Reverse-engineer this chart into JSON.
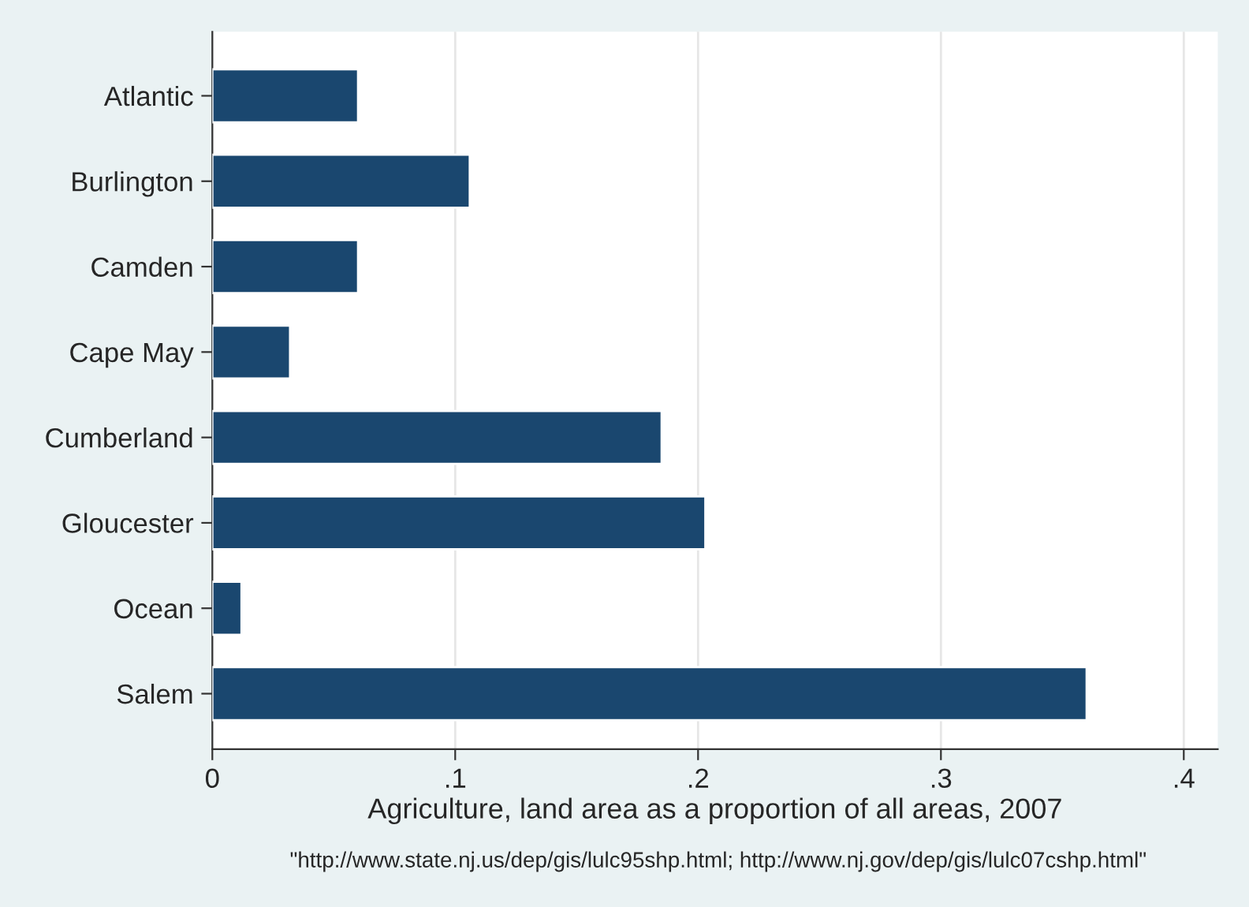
{
  "chart_data": {
    "type": "bar",
    "orientation": "horizontal",
    "categories": [
      "Atlantic",
      "Burlington",
      "Camden",
      "Cape May",
      "Cumberland",
      "Gloucester",
      "Ocean",
      "Salem"
    ],
    "values": [
      0.06,
      0.106,
      0.06,
      0.032,
      0.185,
      0.203,
      0.012,
      0.36
    ],
    "color": "#1a476f",
    "xlim": [
      0,
      0.414
    ],
    "xticks": [
      0,
      {
        "value": 0.1,
        "label": ".1"
      },
      {
        "value": 0.2,
        "label": ".2"
      },
      {
        "value": 0.3,
        "label": ".3"
      },
      {
        "value": 0.4,
        "label": ".4"
      }
    ],
    "xlabel": "Agriculture, land area as a proportion of all areas, 2007",
    "annotations": [
      "\"http://www.state.nj.us/dep/gis/lulc95shp.html; http://www.nj.gov/dep/gis/lulc07cshp.html\""
    ],
    "grid": "x"
  }
}
